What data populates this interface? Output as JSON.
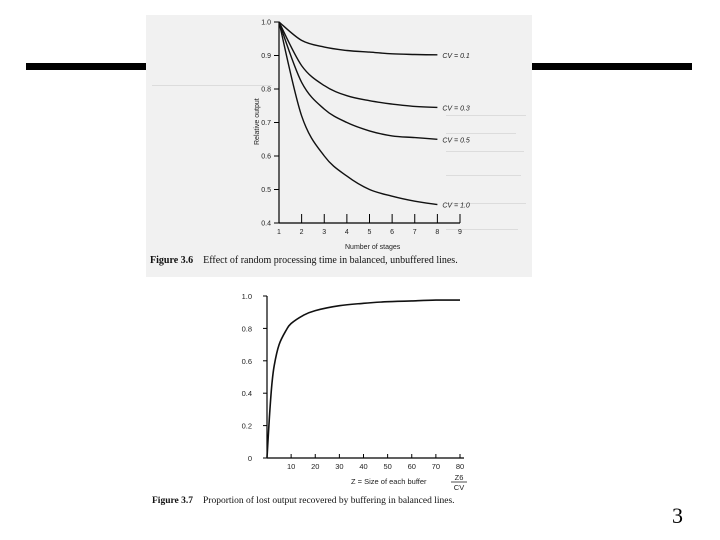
{
  "slide": {
    "page_number": "3"
  },
  "figure1": {
    "caption_label": "Figure 3.6",
    "caption_text": "Effect of random processing time in balanced, unbuffered lines.",
    "chart_data": {
      "type": "line",
      "ylabel": "Relative output",
      "xlabel": "Number of stages",
      "xlim": [
        1,
        9
      ],
      "ylim": [
        0.4,
        1.0
      ],
      "x_ticks": [
        "1",
        "2",
        "3",
        "4",
        "5",
        "6",
        "7",
        "8",
        "9"
      ],
      "y_ticks": [
        "0.4",
        "0.5",
        "0.6",
        "0.7",
        "0.8",
        "0.9",
        "1.0"
      ],
      "grid": false,
      "series": [
        {
          "name": "CV = 0.1",
          "points": [
            [
              1,
              1.0
            ],
            [
              2,
              0.945
            ],
            [
              3,
              0.925
            ],
            [
              4,
              0.915
            ],
            [
              5,
              0.91
            ],
            [
              6,
              0.905
            ],
            [
              7,
              0.903
            ],
            [
              8,
              0.902
            ]
          ]
        },
        {
          "name": "CV = 0.3",
          "points": [
            [
              1,
              1.0
            ],
            [
              2,
              0.87
            ],
            [
              3,
              0.81
            ],
            [
              4,
              0.78
            ],
            [
              5,
              0.765
            ],
            [
              6,
              0.755
            ],
            [
              7,
              0.748
            ],
            [
              8,
              0.745
            ]
          ]
        },
        {
          "name": "CV = 0.5",
          "points": [
            [
              1,
              1.0
            ],
            [
              2,
              0.82
            ],
            [
              3,
              0.74
            ],
            [
              4,
              0.7
            ],
            [
              5,
              0.675
            ],
            [
              6,
              0.66
            ],
            [
              7,
              0.655
            ],
            [
              8,
              0.65
            ]
          ]
        },
        {
          "name": "CV = 1.0",
          "points": [
            [
              1,
              1.0
            ],
            [
              2,
              0.72
            ],
            [
              3,
              0.6
            ],
            [
              4,
              0.54
            ],
            [
              5,
              0.5
            ],
            [
              6,
              0.48
            ],
            [
              7,
              0.465
            ],
            [
              8,
              0.455
            ]
          ]
        }
      ]
    }
  },
  "figure2": {
    "caption_label": "Figure 3.7",
    "caption_text": "Proportion of lost output recovered by buffering in balanced lines.",
    "chart_data": {
      "type": "line",
      "xlabel": "Z = Size of each buffer",
      "x_fraction_label": {
        "numerator": "Z6",
        "denominator": "CV"
      },
      "xlim": [
        0,
        80
      ],
      "ylim": [
        0,
        1.0
      ],
      "x_ticks": [
        "10",
        "20",
        "30",
        "40",
        "50",
        "60",
        "70",
        "80"
      ],
      "y_ticks": [
        "0",
        "0.2",
        "0.4",
        "0.6",
        "0.8",
        "1.0"
      ],
      "grid": false,
      "series": [
        {
          "points": [
            [
              0,
              0
            ],
            [
              1,
              0.25
            ],
            [
              2,
              0.45
            ],
            [
              3,
              0.57
            ],
            [
              5,
              0.7
            ],
            [
              8,
              0.79
            ],
            [
              10,
              0.83
            ],
            [
              15,
              0.88
            ],
            [
              20,
              0.91
            ],
            [
              30,
              0.94
            ],
            [
              40,
              0.955
            ],
            [
              50,
              0.965
            ],
            [
              60,
              0.97
            ],
            [
              70,
              0.975
            ],
            [
              80,
              0.975
            ]
          ]
        }
      ]
    }
  }
}
